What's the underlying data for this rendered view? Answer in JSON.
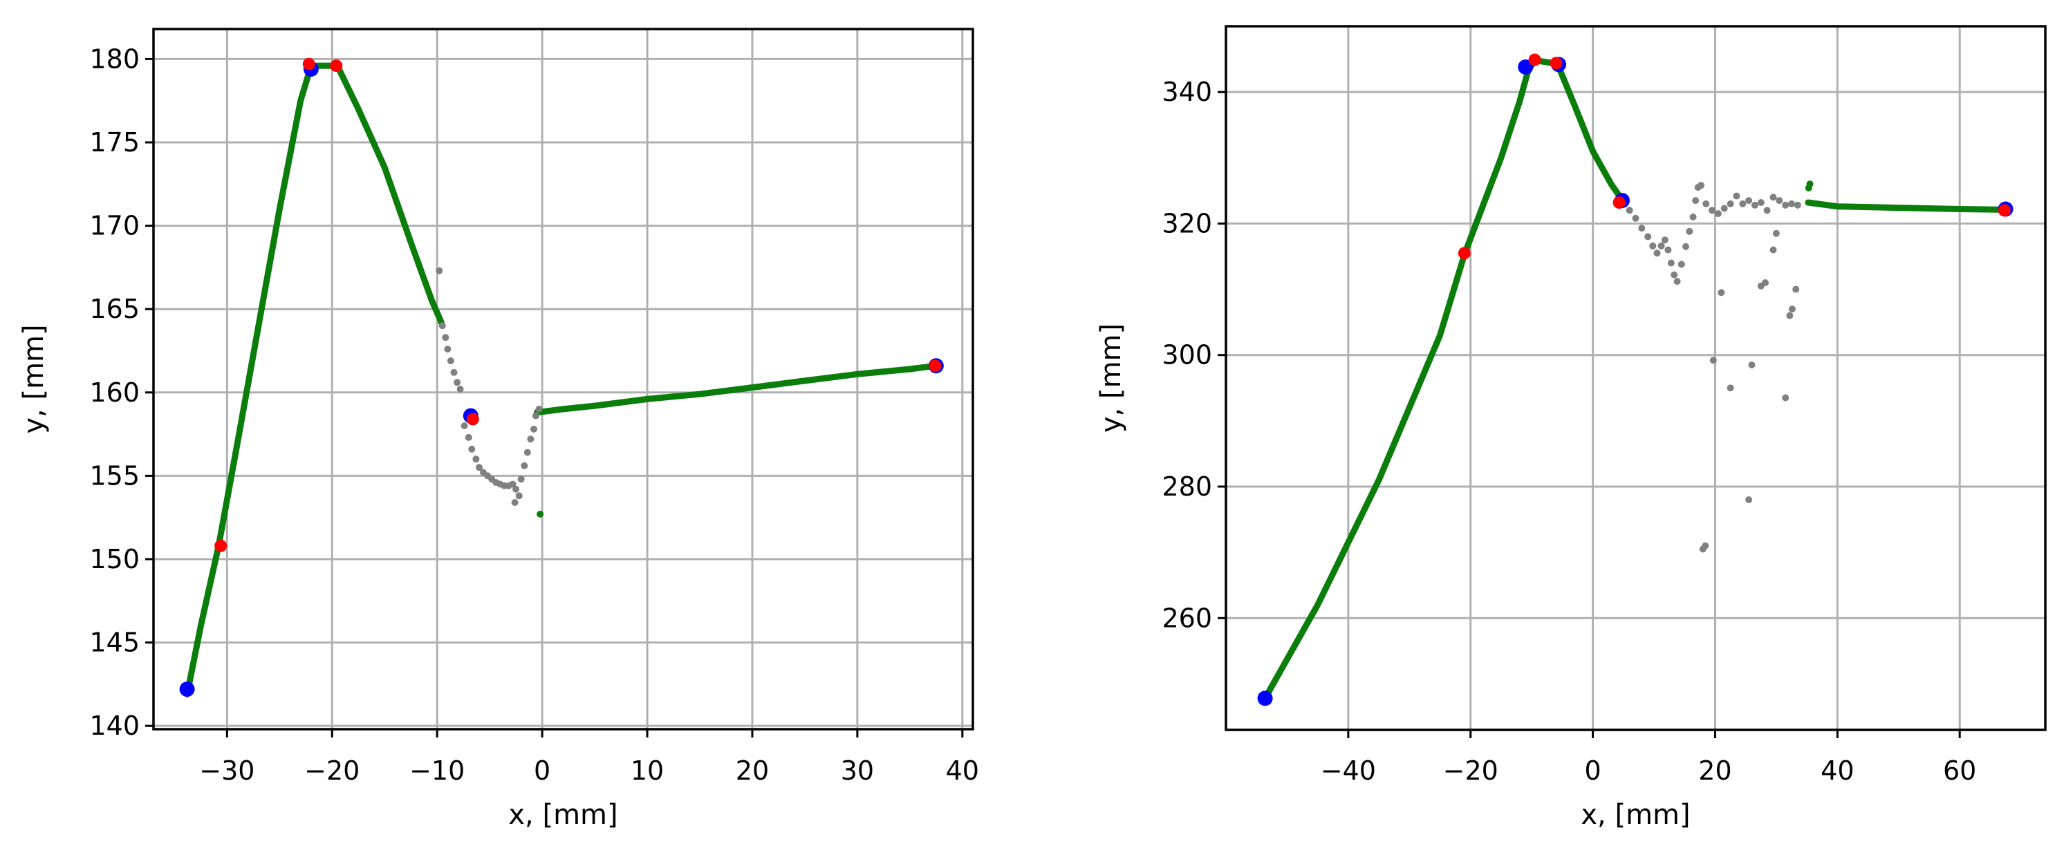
{
  "chart_data": [
    {
      "type": "scatter",
      "title": "",
      "xlabel": "x, [mm]",
      "ylabel": "y, [mm]",
      "xlim": [
        -37,
        41
      ],
      "ylim": [
        139.8,
        181.8
      ],
      "xticks": [
        -30,
        -20,
        -10,
        0,
        10,
        20,
        30,
        40
      ],
      "yticks": [
        140,
        145,
        150,
        155,
        160,
        165,
        170,
        175,
        180
      ],
      "xtick_labels": [
        "−30",
        "−20",
        "−10",
        "0",
        "10",
        "20",
        "30",
        "40"
      ],
      "ytick_labels": [
        "140",
        "145",
        "150",
        "155",
        "160",
        "165",
        "170",
        "175",
        "180"
      ],
      "grid": true,
      "colors": {
        "track": "#0a7d0a",
        "noise": "#808080",
        "endpoints": "#0000ff",
        "keypoints": "#ff0000"
      },
      "series": [
        {
          "role": "track",
          "color": "#0a7d0a",
          "polylines": [
            [
              [
                -33.8,
                141.9
              ],
              [
                -32.5,
                146.0
              ],
              [
                -30.8,
                150.8
              ],
              [
                -29.0,
                157.0
              ],
              [
                -27.0,
                164.0
              ],
              [
                -25.0,
                171.0
              ],
              [
                -23.0,
                177.5
              ],
              [
                -22.0,
                179.6
              ]
            ],
            [
              [
                -22.0,
                179.6
              ],
              [
                -19.5,
                179.6
              ]
            ],
            [
              [
                -19.5,
                179.6
              ],
              [
                -17.5,
                177.0
              ],
              [
                -15.0,
                173.5
              ],
              [
                -12.5,
                169.0
              ],
              [
                -10.5,
                165.5
              ],
              [
                -9.6,
                164.2
              ]
            ],
            [
              [
                -0.5,
                158.8
              ],
              [
                2.0,
                159.0
              ],
              [
                5.0,
                159.2
              ],
              [
                10.0,
                159.6
              ],
              [
                15.0,
                159.9
              ],
              [
                20.0,
                160.3
              ],
              [
                25.0,
                160.7
              ],
              [
                30.0,
                161.1
              ],
              [
                35.0,
                161.4
              ],
              [
                37.5,
                161.6
              ]
            ]
          ],
          "points": [
            [
              -0.2,
              152.7
            ]
          ]
        },
        {
          "role": "noise",
          "color": "#808080",
          "points": [
            [
              -9.5,
              164.0
            ],
            [
              -9.2,
              163.3
            ],
            [
              -9.0,
              162.6
            ],
            [
              -8.7,
              161.9
            ],
            [
              -8.4,
              161.2
            ],
            [
              -8.1,
              160.6
            ],
            [
              -7.8,
              160.2
            ],
            [
              -9.8,
              167.3
            ],
            [
              -7.4,
              158.0
            ],
            [
              -7.0,
              157.3
            ],
            [
              -6.7,
              156.6
            ],
            [
              -6.3,
              156.0
            ],
            [
              -6.0,
              155.5
            ],
            [
              -5.6,
              155.2
            ],
            [
              -5.2,
              155.0
            ],
            [
              -4.8,
              154.8
            ],
            [
              -4.4,
              154.6
            ],
            [
              -4.0,
              154.5
            ],
            [
              -3.6,
              154.4
            ],
            [
              -3.2,
              154.4
            ],
            [
              -2.8,
              154.5
            ],
            [
              -2.5,
              154.2
            ],
            [
              -2.2,
              153.8
            ],
            [
              -2.6,
              153.4
            ],
            [
              -2.0,
              154.8
            ],
            [
              -1.7,
              155.6
            ],
            [
              -1.4,
              156.4
            ],
            [
              -1.1,
              157.2
            ],
            [
              -0.8,
              157.8
            ],
            [
              -0.6,
              158.6
            ],
            [
              -0.3,
              159.0
            ]
          ]
        },
        {
          "role": "endpoints",
          "color": "#0000ff",
          "points": [
            [
              -33.8,
              142.2
            ],
            [
              -22.0,
              179.4
            ],
            [
              -6.8,
              158.6
            ],
            [
              37.5,
              161.6
            ]
          ]
        },
        {
          "role": "keypoints",
          "color": "#ff0000",
          "points": [
            [
              -30.6,
              150.8
            ],
            [
              -22.2,
              179.7
            ],
            [
              -19.6,
              179.6
            ],
            [
              -6.6,
              158.4
            ],
            [
              37.4,
              161.6
            ]
          ]
        }
      ]
    },
    {
      "type": "scatter",
      "title": "",
      "xlabel": "x, [mm]",
      "ylabel": "y, [mm]",
      "xlim": [
        -60,
        74
      ],
      "ylim": [
        243,
        350
      ],
      "xticks": [
        -40,
        -20,
        0,
        20,
        40,
        60
      ],
      "yticks": [
        260,
        280,
        300,
        320,
        340
      ],
      "xtick_labels": [
        "−40",
        "−20",
        "0",
        "20",
        "40",
        "60"
      ],
      "ytick_labels": [
        "260",
        "280",
        "300",
        "320",
        "340"
      ],
      "grid": true,
      "colors": {
        "track": "#0a7d0a",
        "noise": "#808080",
        "endpoints": "#0000ff",
        "keypoints": "#ff0000"
      },
      "series": [
        {
          "role": "track",
          "color": "#0a7d0a",
          "polylines": [
            [
              [
                -53.6,
                247.8
              ],
              [
                -45.0,
                262.0
              ],
              [
                -35.0,
                281.0
              ],
              [
                -25.0,
                303.0
              ],
              [
                -21.0,
                315.3
              ],
              [
                -15.0,
                330.0
              ],
              [
                -12.0,
                338.5
              ],
              [
                -10.5,
                343.5
              ],
              [
                -9.4,
                344.8
              ]
            ],
            [
              [
                -9.4,
                344.8
              ],
              [
                -5.8,
                344.3
              ]
            ],
            [
              [
                -5.8,
                344.3
              ],
              [
                -3.0,
                338.0
              ],
              [
                0.0,
                331.0
              ],
              [
                3.0,
                326.0
              ],
              [
                5.0,
                323.3
              ]
            ],
            [
              [
                35.2,
                323.2
              ],
              [
                40.0,
                322.6
              ],
              [
                50.0,
                322.4
              ],
              [
                60.0,
                322.2
              ],
              [
                67.5,
                322.1
              ]
            ]
          ],
          "points": [
            [
              35.5,
              326.0
            ],
            [
              35.3,
              325.4
            ]
          ]
        },
        {
          "role": "noise",
          "color": "#808080",
          "points": [
            [
              6.0,
              322.0
            ],
            [
              7.0,
              320.8
            ],
            [
              8.0,
              319.3
            ],
            [
              9.0,
              318.0
            ],
            [
              9.8,
              316.6
            ],
            [
              10.5,
              315.5
            ],
            [
              11.2,
              316.6
            ],
            [
              11.8,
              317.5
            ],
            [
              12.3,
              316.0
            ],
            [
              12.8,
              314.0
            ],
            [
              13.3,
              312.2
            ],
            [
              13.8,
              311.2
            ],
            [
              14.5,
              313.8
            ],
            [
              15.2,
              316.5
            ],
            [
              15.8,
              318.8
            ],
            [
              16.4,
              321.0
            ],
            [
              16.8,
              323.5
            ],
            [
              17.2,
              325.5
            ],
            [
              17.7,
              325.8
            ],
            [
              18.5,
              323.0
            ],
            [
              19.5,
              322.0
            ],
            [
              20.5,
              321.5
            ],
            [
              21.5,
              322.3
            ],
            [
              22.5,
              323.0
            ],
            [
              23.5,
              324.2
            ],
            [
              24.5,
              323.0
            ],
            [
              25.5,
              323.5
            ],
            [
              26.5,
              322.8
            ],
            [
              27.5,
              323.2
            ],
            [
              28.5,
              322.0
            ],
            [
              29.5,
              324.0
            ],
            [
              30.5,
              323.5
            ],
            [
              31.5,
              322.8
            ],
            [
              32.5,
              323.0
            ],
            [
              33.5,
              322.8
            ],
            [
              18.0,
              270.5
            ],
            [
              18.4,
              271.0
            ],
            [
              19.7,
              299.2
            ],
            [
              21.0,
              309.5
            ],
            [
              22.5,
              295.0
            ],
            [
              25.5,
              278.0
            ],
            [
              26.0,
              298.5
            ],
            [
              27.5,
              310.5
            ],
            [
              28.2,
              311.0
            ],
            [
              29.5,
              316.0
            ],
            [
              30.0,
              318.5
            ],
            [
              31.5,
              293.5
            ],
            [
              32.2,
              306.0
            ],
            [
              32.6,
              307.0
            ],
            [
              33.2,
              310.0
            ]
          ]
        },
        {
          "role": "endpoints",
          "color": "#0000ff",
          "points": [
            [
              -53.6,
              247.8
            ],
            [
              -11.0,
              343.8
            ],
            [
              -5.6,
              344.2
            ],
            [
              4.8,
              323.5
            ],
            [
              67.5,
              322.2
            ]
          ]
        },
        {
          "role": "keypoints",
          "color": "#ff0000",
          "points": [
            [
              -21.0,
              315.5
            ],
            [
              -9.5,
              344.9
            ],
            [
              -6.0,
              344.4
            ],
            [
              4.3,
              323.2
            ],
            [
              67.3,
              322.0
            ]
          ]
        }
      ]
    }
  ]
}
